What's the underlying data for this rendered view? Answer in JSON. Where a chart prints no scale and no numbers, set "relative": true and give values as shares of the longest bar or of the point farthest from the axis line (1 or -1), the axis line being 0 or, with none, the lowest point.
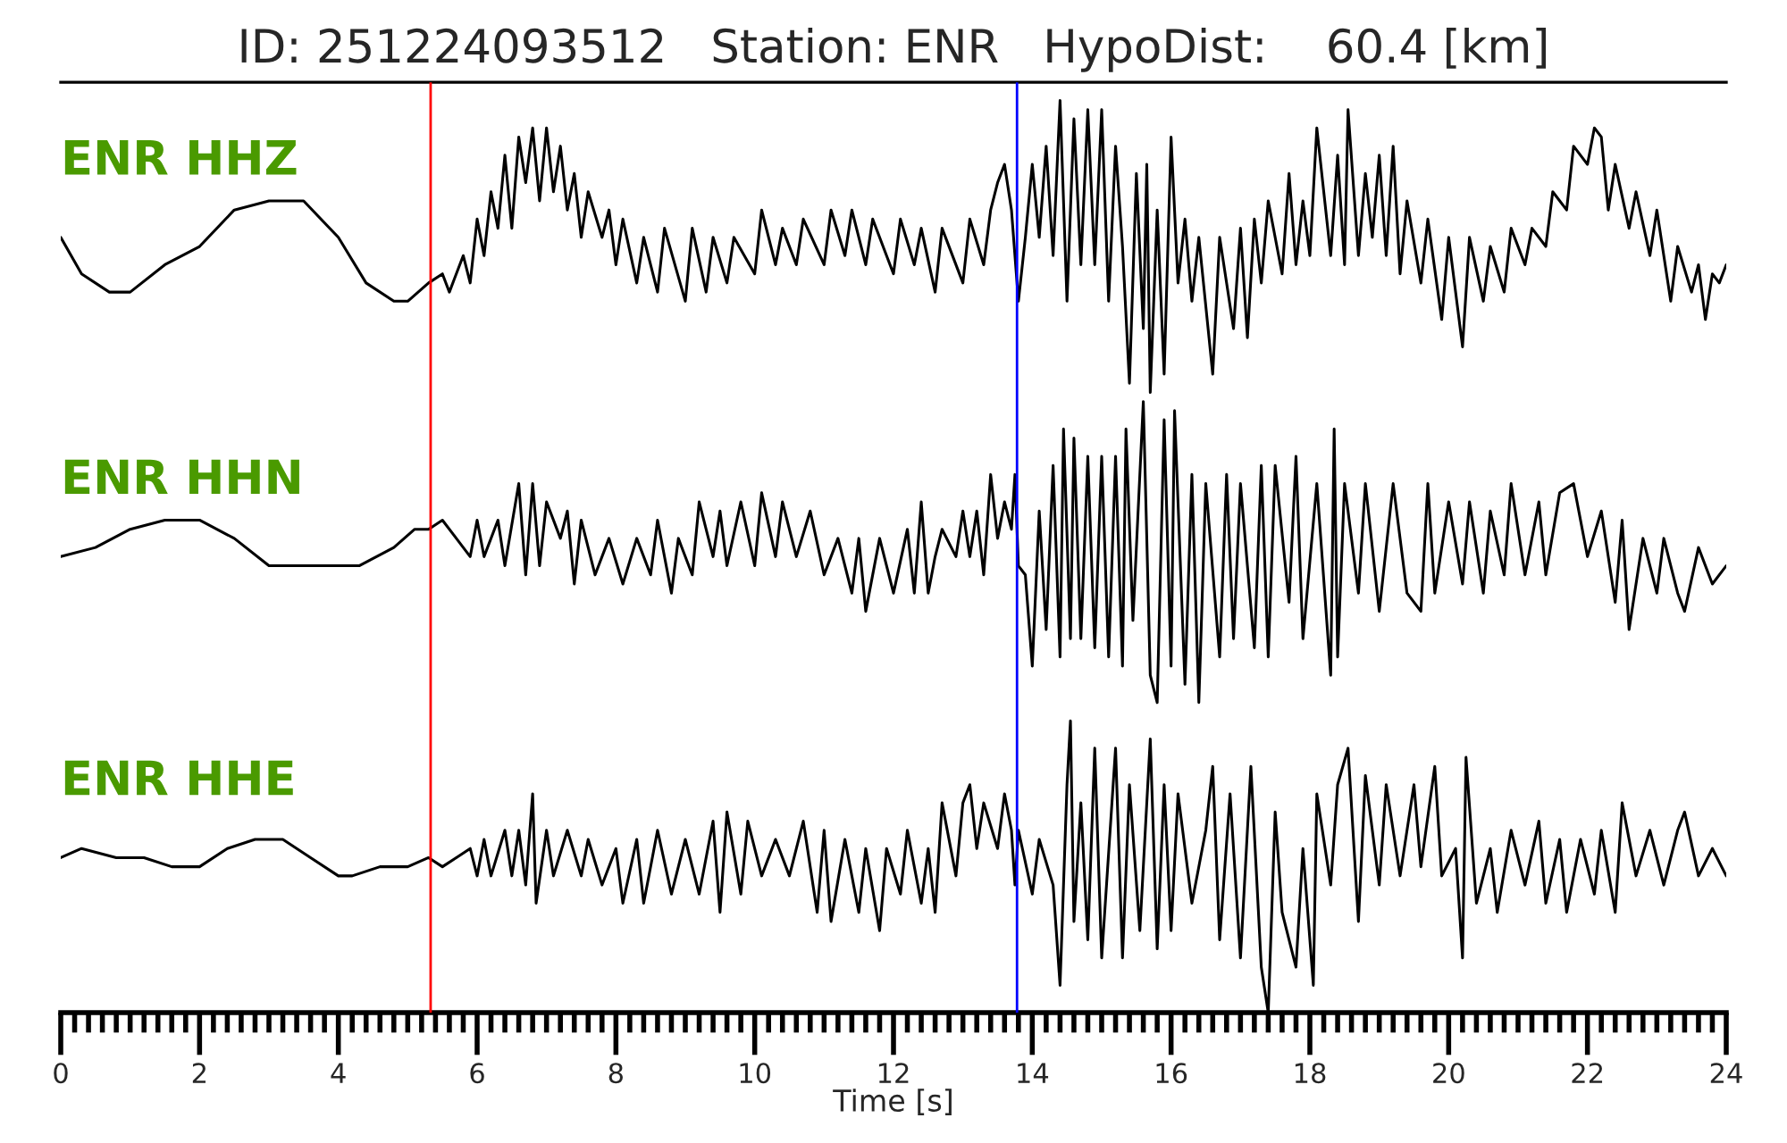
{
  "chart_data": {
    "type": "line",
    "relative": true,
    "title": "ID: 251224093512   Station: ENR   HypoDist:    60.4 [km]",
    "xlabel": "Time [s]",
    "xlim": [
      0,
      24
    ],
    "xticks": [
      0,
      {
        "value": 0.2,
        "label": null
      },
      {
        "value": 0.4,
        "label": null
      },
      {
        "value": 0.6,
        "label": null
      },
      {
        "value": 0.8,
        "label": null
      },
      {
        "value": 1,
        "label": null
      },
      {
        "value": 1.2,
        "label": null
      },
      {
        "value": 1.4,
        "label": null
      },
      {
        "value": 1.6,
        "label": null
      },
      {
        "value": 1.8,
        "label": null
      },
      2,
      {
        "value": 2.2,
        "label": null
      },
      {
        "value": 2.4,
        "label": null
      },
      {
        "value": 2.6,
        "label": null
      },
      {
        "value": 2.8,
        "label": null
      },
      {
        "value": 3,
        "label": null
      },
      {
        "value": 3.2,
        "label": null
      },
      {
        "value": 3.4,
        "label": null
      },
      {
        "value": 3.6,
        "label": null
      },
      {
        "value": 3.8,
        "label": null
      },
      4,
      {
        "value": 4.2,
        "label": null
      },
      {
        "value": 4.4,
        "label": null
      },
      {
        "value": 4.6,
        "label": null
      },
      {
        "value": 4.8,
        "label": null
      },
      {
        "value": 5,
        "label": null
      },
      {
        "value": 5.2,
        "label": null
      },
      {
        "value": 5.4,
        "label": null
      },
      {
        "value": 5.6,
        "label": null
      },
      {
        "value": 5.8,
        "label": null
      },
      6,
      {
        "value": 6.2,
        "label": null
      },
      {
        "value": 6.4,
        "label": null
      },
      {
        "value": 6.6,
        "label": null
      },
      {
        "value": 6.8,
        "label": null
      },
      {
        "value": 7,
        "label": null
      },
      {
        "value": 7.2,
        "label": null
      },
      {
        "value": 7.4,
        "label": null
      },
      {
        "value": 7.6,
        "label": null
      },
      {
        "value": 7.8,
        "label": null
      },
      8,
      {
        "value": 8.2,
        "label": null
      },
      {
        "value": 8.4,
        "label": null
      },
      {
        "value": 8.6,
        "label": null
      },
      {
        "value": 8.8,
        "label": null
      },
      {
        "value": 9,
        "label": null
      },
      {
        "value": 9.2,
        "label": null
      },
      {
        "value": 9.4,
        "label": null
      },
      {
        "value": 9.6,
        "label": null
      },
      {
        "value": 9.8,
        "label": null
      },
      10,
      {
        "value": 10.2,
        "label": null
      },
      {
        "value": 10.4,
        "label": null
      },
      {
        "value": 10.6,
        "label": null
      },
      {
        "value": 10.8,
        "label": null
      },
      {
        "value": 11,
        "label": null
      },
      {
        "value": 11.2,
        "label": null
      },
      {
        "value": 11.4,
        "label": null
      },
      {
        "value": 11.6,
        "label": null
      },
      {
        "value": 11.8,
        "label": null
      },
      12,
      {
        "value": 12.2,
        "label": null
      },
      {
        "value": 12.4,
        "label": null
      },
      {
        "value": 12.6,
        "label": null
      },
      {
        "value": 12.8,
        "label": null
      },
      {
        "value": 13,
        "label": null
      },
      {
        "value": 13.2,
        "label": null
      },
      {
        "value": 13.4,
        "label": null
      },
      {
        "value": 13.6,
        "label": null
      },
      {
        "value": 13.8,
        "label": null
      },
      14,
      {
        "value": 14.2,
        "label": null
      },
      {
        "value": 14.4,
        "label": null
      },
      {
        "value": 14.6,
        "label": null
      },
      {
        "value": 14.8,
        "label": null
      },
      {
        "value": 15,
        "label": null
      },
      {
        "value": 15.2,
        "label": null
      },
      {
        "value": 15.4,
        "label": null
      },
      {
        "value": 15.6,
        "label": null
      },
      {
        "value": 15.8,
        "label": null
      },
      16,
      {
        "value": 16.2,
        "label": null
      },
      {
        "value": 16.4,
        "label": null
      },
      {
        "value": 16.6,
        "label": null
      },
      {
        "value": 16.8,
        "label": null
      },
      {
        "value": 17,
        "label": null
      },
      {
        "value": 17.2,
        "label": null
      },
      {
        "value": 17.4,
        "label": null
      },
      {
        "value": 17.6,
        "label": null
      },
      {
        "value": 17.8,
        "label": null
      },
      18,
      {
        "value": 18.2,
        "label": null
      },
      {
        "value": 18.4,
        "label": null
      },
      {
        "value": 18.6,
        "label": null
      },
      {
        "value": 18.8,
        "label": null
      },
      {
        "value": 19,
        "label": null
      },
      {
        "value": 19.2,
        "label": null
      },
      {
        "value": 19.4,
        "label": null
      },
      {
        "value": 19.6,
        "label": null
      },
      {
        "value": 19.8,
        "label": null
      },
      20,
      {
        "value": 20.2,
        "label": null
      },
      {
        "value": 20.4,
        "label": null
      },
      {
        "value": 20.6,
        "label": null
      },
      {
        "value": 20.8,
        "label": null
      },
      {
        "value": 21,
        "label": null
      },
      {
        "value": 21.2,
        "label": null
      },
      {
        "value": 21.4,
        "label": null
      },
      {
        "value": 21.6,
        "label": null
      },
      {
        "value": 21.8,
        "label": null
      },
      22,
      {
        "value": 22.2,
        "label": null
      },
      {
        "value": 22.4,
        "label": null
      },
      {
        "value": 22.6,
        "label": null
      },
      {
        "value": 22.8,
        "label": null
      },
      {
        "value": 23,
        "label": null
      },
      {
        "value": 23.2,
        "label": null
      },
      {
        "value": 23.4,
        "label": null
      },
      {
        "value": 23.6,
        "label": null
      },
      {
        "value": 23.8,
        "label": null
      },
      24
    ],
    "series": [
      {
        "name": "ENR HHZ",
        "color": "#000000",
        "x": [
          0,
          0.3,
          0.7,
          1,
          1.5,
          2,
          2.5,
          3,
          3.5,
          4,
          4.4,
          4.8,
          5,
          5.3,
          5.5,
          5.6,
          5.8,
          5.9,
          6,
          6.1,
          6.2,
          6.3,
          6.4,
          6.5,
          6.6,
          6.7,
          6.8,
          6.9,
          7,
          7.1,
          7.2,
          7.3,
          7.4,
          7.5,
          7.6,
          7.8,
          7.9,
          8,
          8.1,
          8.3,
          8.4,
          8.6,
          8.7,
          9,
          9.1,
          9.3,
          9.4,
          9.6,
          9.7,
          10,
          10.1,
          10.3,
          10.4,
          10.6,
          10.7,
          11,
          11.1,
          11.3,
          11.4,
          11.6,
          11.7,
          12,
          12.1,
          12.3,
          12.4,
          12.6,
          12.7,
          13,
          13.1,
          13.3,
          13.4,
          13.5,
          13.6,
          13.7,
          13.8,
          13.9,
          14,
          14.1,
          14.2,
          14.3,
          14.4,
          14.5,
          14.6,
          14.7,
          14.8,
          14.9,
          15,
          15.1,
          15.2,
          15.3,
          15.4,
          15.5,
          15.6,
          15.65,
          15.7,
          15.8,
          15.9,
          16,
          16.1,
          16.2,
          16.3,
          16.4,
          16.6,
          16.7,
          16.9,
          17,
          17.1,
          17.2,
          17.3,
          17.4,
          17.6,
          17.7,
          17.8,
          17.9,
          18,
          18.1,
          18.3,
          18.4,
          18.5,
          18.55,
          18.7,
          18.8,
          18.9,
          19,
          19.1,
          19.2,
          19.3,
          19.4,
          19.6,
          19.7,
          19.9,
          20,
          20.2,
          20.3,
          20.5,
          20.6,
          20.8,
          20.9,
          21.1,
          21.2,
          21.4,
          21.5,
          21.7,
          21.8,
          22,
          22.1,
          22.2,
          22.3,
          22.4,
          22.6,
          22.7,
          22.9,
          23,
          23.2,
          23.3,
          23.5,
          23.6,
          23.7,
          23.8,
          23.9,
          24
        ],
        "values": [
          0.85,
          0.81,
          0.79,
          0.79,
          0.82,
          0.84,
          0.88,
          0.89,
          0.89,
          0.85,
          0.8,
          0.78,
          0.78,
          0.8,
          0.81,
          0.79,
          0.83,
          0.8,
          0.87,
          0.83,
          0.9,
          0.86,
          0.94,
          0.86,
          0.96,
          0.91,
          0.97,
          0.89,
          0.97,
          0.9,
          0.95,
          0.88,
          0.92,
          0.85,
          0.9,
          0.85,
          0.88,
          0.82,
          0.87,
          0.8,
          0.85,
          0.79,
          0.86,
          0.78,
          0.86,
          0.79,
          0.85,
          0.8,
          0.85,
          0.81,
          0.88,
          0.82,
          0.86,
          0.82,
          0.87,
          0.82,
          0.88,
          0.83,
          0.88,
          0.82,
          0.87,
          0.81,
          0.87,
          0.82,
          0.86,
          0.79,
          0.86,
          0.8,
          0.87,
          0.82,
          0.88,
          0.91,
          0.93,
          0.88,
          0.78,
          0.85,
          0.93,
          0.85,
          0.95,
          0.83,
          1.0,
          0.78,
          0.98,
          0.82,
          0.99,
          0.82,
          0.99,
          0.78,
          0.95,
          0.84,
          0.69,
          0.92,
          0.75,
          0.93,
          0.68,
          0.88,
          0.7,
          0.96,
          0.8,
          0.87,
          0.78,
          0.85,
          0.7,
          0.85,
          0.75,
          0.86,
          0.74,
          0.87,
          0.8,
          0.89,
          0.81,
          0.92,
          0.82,
          0.89,
          0.83,
          0.97,
          0.83,
          0.94,
          0.82,
          0.99,
          0.83,
          0.92,
          0.85,
          0.94,
          0.83,
          0.95,
          0.81,
          0.89,
          0.8,
          0.87,
          0.76,
          0.85,
          0.73,
          0.85,
          0.78,
          0.84,
          0.79,
          0.86,
          0.82,
          0.86,
          0.84,
          0.9,
          0.88,
          0.95,
          0.93,
          0.97,
          0.96,
          0.88,
          0.93,
          0.86,
          0.9,
          0.83,
          0.88,
          0.78,
          0.84,
          0.79,
          0.82,
          0.76,
          0.81,
          0.8,
          0.82
        ]
      },
      {
        "name": "ENR HHN",
        "color": "#000000",
        "x": [
          0,
          0.5,
          1,
          1.5,
          2,
          2.5,
          3,
          3.3,
          3.8,
          4.3,
          4.8,
          5.1,
          5.3,
          5.5,
          5.7,
          5.9,
          6,
          6.1,
          6.3,
          6.4,
          6.6,
          6.7,
          6.8,
          6.9,
          7,
          7.2,
          7.3,
          7.4,
          7.5,
          7.7,
          7.9,
          8.1,
          8.3,
          8.5,
          8.6,
          8.8,
          8.9,
          9.1,
          9.2,
          9.4,
          9.5,
          9.6,
          9.8,
          10,
          10.1,
          10.3,
          10.4,
          10.6,
          10.8,
          11,
          11.2,
          11.4,
          11.5,
          11.6,
          11.8,
          12,
          12.2,
          12.3,
          12.4,
          12.5,
          12.6,
          12.7,
          12.9,
          13,
          13.1,
          13.2,
          13.3,
          13.4,
          13.5,
          13.6,
          13.7,
          13.75,
          13.8,
          13.9,
          14,
          14.1,
          14.2,
          14.3,
          14.4,
          14.45,
          14.55,
          14.6,
          14.7,
          14.8,
          14.9,
          15,
          15.1,
          15.2,
          15.3,
          15.35,
          15.45,
          15.6,
          15.7,
          15.8,
          15.9,
          16,
          16.05,
          16.2,
          16.3,
          16.4,
          16.5,
          16.7,
          16.8,
          16.9,
          17,
          17.2,
          17.3,
          17.4,
          17.5,
          17.7,
          17.8,
          17.9,
          18.1,
          18.3,
          18.35,
          18.4,
          18.5,
          18.7,
          18.8,
          19,
          19.2,
          19.4,
          19.6,
          19.7,
          19.8,
          20,
          20.2,
          20.3,
          20.5,
          20.6,
          20.8,
          20.9,
          21.1,
          21.3,
          21.4,
          21.6,
          21.8,
          22,
          22.2,
          22.4,
          22.5,
          22.6,
          22.8,
          23,
          23.1,
          23.3,
          23.4,
          23.6,
          23.8,
          24
        ],
        "values": [
          0.5,
          0.51,
          0.53,
          0.54,
          0.54,
          0.52,
          0.49,
          0.49,
          0.49,
          0.49,
          0.51,
          0.53,
          0.53,
          0.54,
          0.52,
          0.5,
          0.54,
          0.5,
          0.54,
          0.49,
          0.58,
          0.48,
          0.58,
          0.49,
          0.56,
          0.52,
          0.55,
          0.47,
          0.54,
          0.48,
          0.52,
          0.47,
          0.52,
          0.48,
          0.54,
          0.46,
          0.52,
          0.48,
          0.56,
          0.5,
          0.55,
          0.49,
          0.56,
          0.49,
          0.57,
          0.5,
          0.56,
          0.5,
          0.55,
          0.48,
          0.52,
          0.46,
          0.52,
          0.44,
          0.52,
          0.46,
          0.53,
          0.46,
          0.56,
          0.46,
          0.5,
          0.53,
          0.5,
          0.55,
          0.5,
          0.55,
          0.48,
          0.59,
          0.52,
          0.56,
          0.53,
          0.59,
          0.49,
          0.48,
          0.38,
          0.55,
          0.42,
          0.6,
          0.39,
          0.64,
          0.41,
          0.63,
          0.41,
          0.61,
          0.4,
          0.61,
          0.39,
          0.61,
          0.38,
          0.64,
          0.43,
          0.67,
          0.37,
          0.34,
          0.65,
          0.38,
          0.66,
          0.36,
          0.59,
          0.34,
          0.58,
          0.39,
          0.59,
          0.41,
          0.58,
          0.4,
          0.6,
          0.39,
          0.6,
          0.45,
          0.61,
          0.41,
          0.58,
          0.37,
          0.64,
          0.39,
          0.58,
          0.46,
          0.58,
          0.44,
          0.58,
          0.46,
          0.44,
          0.58,
          0.46,
          0.56,
          0.47,
          0.56,
          0.46,
          0.55,
          0.48,
          0.58,
          0.48,
          0.56,
          0.48,
          0.57,
          0.58,
          0.5,
          0.55,
          0.45,
          0.54,
          0.42,
          0.52,
          0.46,
          0.52,
          0.46,
          0.44,
          0.51,
          0.47,
          0.49
        ]
      },
      {
        "name": "ENR HHE",
        "color": "#000000",
        "x": [
          0,
          0.3,
          0.8,
          1.2,
          1.6,
          2,
          2.4,
          2.8,
          3.2,
          3.6,
          4,
          4.2,
          4.6,
          5,
          5.3,
          5.5,
          5.7,
          5.9,
          6,
          6.1,
          6.2,
          6.4,
          6.5,
          6.6,
          6.7,
          6.8,
          6.85,
          7,
          7.1,
          7.3,
          7.5,
          7.6,
          7.8,
          8,
          8.1,
          8.3,
          8.4,
          8.6,
          8.8,
          9,
          9.2,
          9.4,
          9.5,
          9.6,
          9.8,
          9.9,
          10.1,
          10.3,
          10.5,
          10.7,
          10.9,
          11,
          11.1,
          11.3,
          11.5,
          11.6,
          11.8,
          11.9,
          12.1,
          12.2,
          12.4,
          12.5,
          12.6,
          12.7,
          12.9,
          13,
          13.1,
          13.2,
          13.3,
          13.5,
          13.6,
          13.7,
          13.75,
          13.8,
          14,
          14.1,
          14.3,
          14.4,
          14.5,
          14.55,
          14.6,
          14.7,
          14.8,
          14.9,
          15,
          15.2,
          15.3,
          15.4,
          15.55,
          15.7,
          15.8,
          15.9,
          16,
          16.1,
          16.3,
          16.5,
          16.6,
          16.7,
          16.85,
          17,
          17.15,
          17.3,
          17.4,
          17.5,
          17.6,
          17.8,
          17.9,
          18.05,
          18.1,
          18.3,
          18.4,
          18.55,
          18.7,
          18.8,
          19,
          19.1,
          19.3,
          19.5,
          19.6,
          19.8,
          19.9,
          20.1,
          20.2,
          20.25,
          20.4,
          20.6,
          20.7,
          20.9,
          21.1,
          21.3,
          21.4,
          21.6,
          21.7,
          21.9,
          22.1,
          22.2,
          22.4,
          22.5,
          22.7,
          22.9,
          23.1,
          23.3,
          23.4,
          23.6,
          23.8,
          24
        ],
        "values": [
          0.17,
          0.18,
          0.17,
          0.17,
          0.16,
          0.16,
          0.18,
          0.19,
          0.19,
          0.17,
          0.15,
          0.15,
          0.16,
          0.16,
          0.17,
          0.16,
          0.17,
          0.18,
          0.15,
          0.19,
          0.15,
          0.2,
          0.15,
          0.2,
          0.14,
          0.24,
          0.12,
          0.2,
          0.15,
          0.2,
          0.15,
          0.19,
          0.14,
          0.18,
          0.12,
          0.19,
          0.12,
          0.2,
          0.13,
          0.19,
          0.13,
          0.21,
          0.11,
          0.22,
          0.13,
          0.21,
          0.15,
          0.19,
          0.15,
          0.21,
          0.11,
          0.2,
          0.1,
          0.19,
          0.11,
          0.18,
          0.09,
          0.18,
          0.13,
          0.2,
          0.12,
          0.18,
          0.11,
          0.23,
          0.15,
          0.23,
          0.25,
          0.18,
          0.23,
          0.18,
          0.24,
          0.2,
          0.14,
          0.2,
          0.13,
          0.19,
          0.14,
          0.03,
          0.25,
          0.32,
          0.1,
          0.23,
          0.08,
          0.29,
          0.06,
          0.29,
          0.06,
          0.25,
          0.09,
          0.3,
          0.07,
          0.25,
          0.09,
          0.24,
          0.12,
          0.2,
          0.27,
          0.08,
          0.24,
          0.06,
          0.27,
          0.05,
          0.0,
          0.22,
          0.11,
          0.05,
          0.18,
          0.03,
          0.24,
          0.14,
          0.25,
          0.29,
          0.1,
          0.26,
          0.14,
          0.25,
          0.15,
          0.25,
          0.16,
          0.27,
          0.15,
          0.18,
          0.06,
          0.28,
          0.12,
          0.18,
          0.11,
          0.2,
          0.14,
          0.21,
          0.12,
          0.19,
          0.11,
          0.19,
          0.13,
          0.2,
          0.11,
          0.23,
          0.15,
          0.2,
          0.14,
          0.2,
          0.22,
          0.15,
          0.18,
          0.15
        ]
      }
    ],
    "ref_lines": [
      {
        "axis": "x",
        "value": 5.33,
        "color": "#ff0000"
      },
      {
        "axis": "x",
        "value": 13.78,
        "color": "#0000ff"
      }
    ]
  }
}
